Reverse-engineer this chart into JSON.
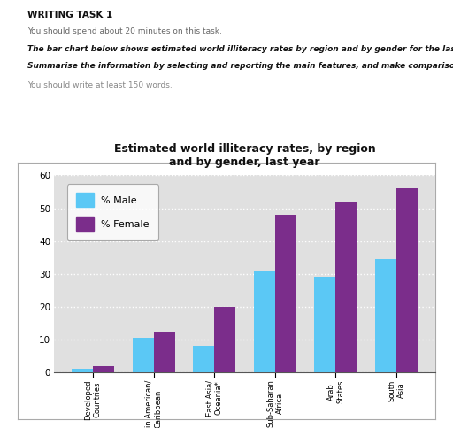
{
  "title": "Estimated world illiteracy rates, by region\nand by gender, last year",
  "categories": [
    "Developed\nCountries",
    "Latin American/\nCaribbean",
    "East Asia/\nOceania*",
    "Sub-Saharan\nAfrica",
    "Arab\nStates",
    "South\nAsia"
  ],
  "male_values": [
    1,
    10.5,
    8,
    31,
    29,
    34.5
  ],
  "female_values": [
    2,
    12.5,
    20,
    48,
    52,
    56
  ],
  "male_color": "#5bc8f5",
  "female_color": "#7b2d8b",
  "ylim": [
    0,
    60
  ],
  "yticks": [
    0,
    10,
    20,
    30,
    40,
    50,
    60
  ],
  "bar_width": 0.35,
  "legend_male": "% Male",
  "legend_female": "% Female",
  "bg_color": "#e0e0e0",
  "grid_color": "#ffffff",
  "header_title": "WRITING TASK 1",
  "header_line1": "You should spend about 20 minutes on this task.",
  "header_line2": "The bar chart below shows estimated world illiteracy rates by region and by gender for the last year.",
  "header_line3": "Summarise the information by selecting and reporting the main features, and make comparisons where relevant.",
  "header_line4": "You should write at least 150 words."
}
